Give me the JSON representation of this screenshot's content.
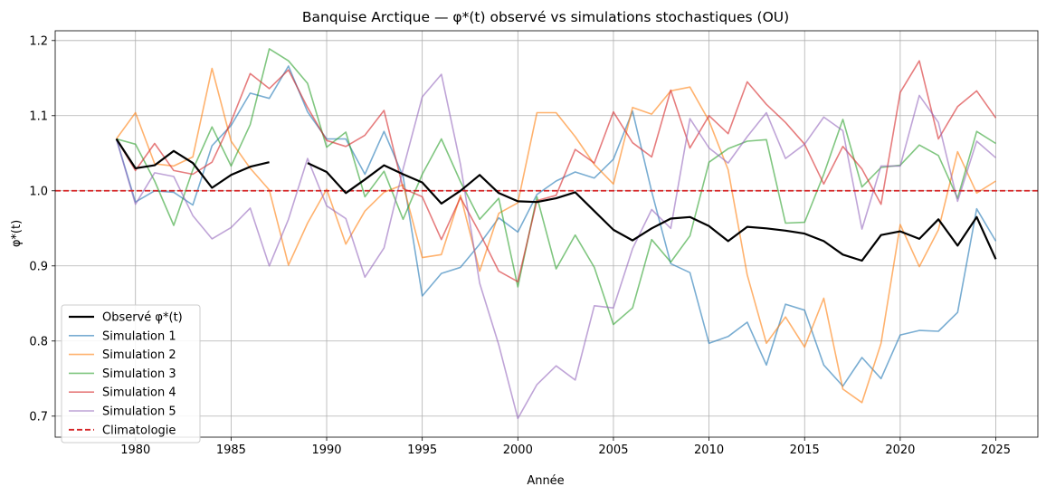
{
  "chart_data": {
    "type": "line",
    "title": "Banquise Arctique — φ*(t) observé vs simulations stochastiques (OU)",
    "xlabel": "Année",
    "ylabel": "φ*(t)",
    "xlim": [
      1976.8,
      1927.2
    ],
    "xlim_true": [
      1975.8,
      2027.2
    ],
    "ylim": [
      0.672,
      1.213
    ],
    "xticks": [
      1980,
      1985,
      1990,
      1995,
      2000,
      2005,
      2010,
      2015,
      2020,
      2025
    ],
    "yticks": [
      0.7,
      0.8,
      0.9,
      1.0,
      1.1,
      1.2
    ],
    "ytick_labels": [
      "0.7",
      "0.8",
      "0.9",
      "1.0",
      "1.1",
      "1.2"
    ],
    "grid": true,
    "legend_position": "lower-left",
    "x": [
      1979,
      1980,
      1981,
      1982,
      1983,
      1984,
      1985,
      1986,
      1987,
      1988,
      1989,
      1990,
      1991,
      1992,
      1993,
      1994,
      1995,
      1996,
      1997,
      1998,
      1999,
      2000,
      2001,
      2002,
      2003,
      2004,
      2005,
      2006,
      2007,
      2008,
      2009,
      2010,
      2011,
      2012,
      2013,
      2014,
      2015,
      2016,
      2017,
      2018,
      2019,
      2020,
      2021,
      2022,
      2023,
      2024,
      2025
    ],
    "series": [
      {
        "name": "Observé φ*(t)",
        "color": "#000000",
        "width": 2.2,
        "dashed": false,
        "opacity": 1,
        "values": [
          1.069,
          1.03,
          1.034,
          1.053,
          1.037,
          1.004,
          1.021,
          1.032,
          1.038,
          null,
          1.037,
          1.025,
          0.997,
          1.015,
          1.034,
          1.022,
          1.011,
          0.983,
          1.0,
          1.021,
          0.997,
          0.986,
          0.985,
          0.99,
          0.998,
          0.973,
          0.948,
          0.934,
          0.95,
          0.963,
          0.965,
          0.953,
          0.933,
          0.952,
          0.95,
          0.947,
          0.943,
          0.933,
          0.915,
          0.907,
          0.941,
          0.946,
          0.936,
          0.962,
          0.927,
          0.965,
          0.909
        ]
      },
      {
        "name": "Simulation 1",
        "color": "#1f77b4",
        "width": 1.6,
        "dashed": false,
        "opacity": 0.6,
        "values": [
          1.069,
          0.985,
          1.0,
          0.998,
          0.981,
          1.06,
          1.087,
          1.13,
          1.123,
          1.166,
          1.105,
          1.069,
          1.069,
          1.022,
          1.079,
          1.019,
          0.86,
          0.89,
          0.898,
          0.929,
          0.964,
          0.945,
          0.995,
          1.013,
          1.025,
          1.017,
          1.042,
          1.106,
          0.999,
          0.903,
          0.891,
          0.797,
          0.806,
          0.825,
          0.768,
          0.849,
          0.841,
          0.768,
          0.74,
          0.778,
          0.75,
          0.808,
          0.814,
          0.813,
          0.838,
          0.976,
          0.933
        ]
      },
      {
        "name": "Simulation 2",
        "color": "#ff7f0e",
        "width": 1.6,
        "dashed": false,
        "opacity": 0.6,
        "values": [
          1.069,
          1.104,
          1.036,
          1.033,
          1.045,
          1.163,
          1.066,
          1.03,
          1.001,
          0.901,
          0.957,
          1.002,
          0.929,
          0.973,
          0.998,
          1.008,
          0.911,
          0.915,
          0.994,
          0.893,
          0.97,
          0.984,
          1.104,
          1.104,
          1.072,
          1.035,
          1.009,
          1.111,
          1.102,
          1.133,
          1.138,
          1.093,
          1.028,
          0.888,
          0.797,
          0.832,
          0.792,
          0.857,
          0.736,
          0.718,
          0.797,
          0.955,
          0.899,
          0.948,
          1.052,
          0.997,
          1.013
        ]
      },
      {
        "name": "Simulation 3",
        "color": "#2ca02c",
        "width": 1.6,
        "dashed": false,
        "opacity": 0.6,
        "values": [
          1.069,
          1.062,
          1.013,
          0.954,
          1.028,
          1.085,
          1.033,
          1.088,
          1.189,
          1.173,
          1.143,
          1.058,
          1.078,
          0.992,
          1.026,
          0.962,
          1.022,
          1.069,
          1.012,
          0.962,
          0.99,
          0.872,
          0.992,
          0.896,
          0.941,
          0.898,
          0.822,
          0.844,
          0.935,
          0.905,
          0.94,
          1.038,
          1.056,
          1.066,
          1.068,
          0.957,
          0.958,
          1.022,
          1.095,
          1.005,
          1.031,
          1.034,
          1.061,
          1.047,
          0.99,
          1.079,
          1.063
        ]
      },
      {
        "name": "Simulation 4",
        "color": "#d62728",
        "width": 1.6,
        "dashed": false,
        "opacity": 0.6,
        "values": [
          1.069,
          1.027,
          1.063,
          1.027,
          1.022,
          1.038,
          1.092,
          1.156,
          1.136,
          1.161,
          1.111,
          1.067,
          1.059,
          1.074,
          1.107,
          1.003,
          0.992,
          0.935,
          0.991,
          0.944,
          0.893,
          0.879,
          0.987,
          0.994,
          1.055,
          1.037,
          1.105,
          1.064,
          1.045,
          1.134,
          1.057,
          1.1,
          1.076,
          1.145,
          1.115,
          1.091,
          1.062,
          1.009,
          1.059,
          1.029,
          0.982,
          1.131,
          1.173,
          1.069,
          1.112,
          1.133,
          1.097
        ]
      },
      {
        "name": "Simulation 5",
        "color": "#9467bd",
        "width": 1.6,
        "dashed": false,
        "opacity": 0.6,
        "values": [
          1.069,
          0.982,
          1.024,
          1.019,
          0.967,
          0.936,
          0.951,
          0.977,
          0.9,
          0.962,
          1.043,
          0.98,
          0.963,
          0.885,
          0.924,
          1.029,
          1.125,
          1.155,
          1.035,
          0.877,
          0.795,
          0.697,
          0.742,
          0.767,
          0.748,
          0.847,
          0.844,
          0.923,
          0.975,
          0.95,
          1.096,
          1.057,
          1.037,
          1.072,
          1.104,
          1.043,
          1.062,
          1.098,
          1.08,
          0.949,
          1.033,
          1.033,
          1.127,
          1.091,
          0.986,
          1.066,
          1.044
        ]
      },
      {
        "name": "Climatologie",
        "color": "#d62728",
        "width": 1.8,
        "dashed": true,
        "opacity": 1,
        "hline": 1.0
      }
    ]
  }
}
